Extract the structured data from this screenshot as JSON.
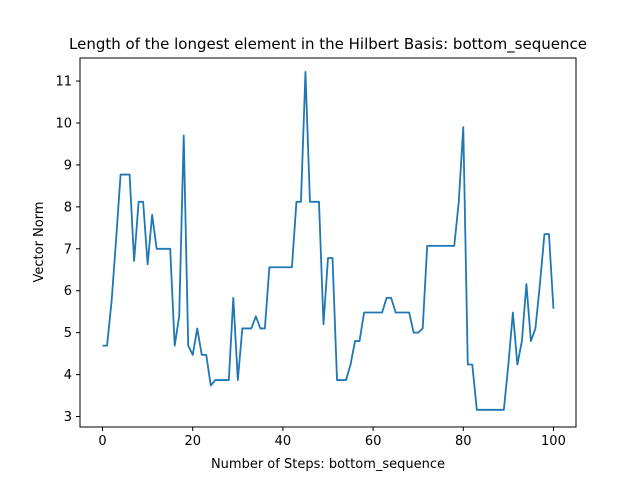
{
  "chart_data": {
    "type": "line",
    "title": "Length of the longest element in the Hilbert Basis: bottom_sequence",
    "xlabel": "Number of Steps: bottom_sequence",
    "ylabel": "Vector Norm",
    "xlim": [
      -5,
      105
    ],
    "ylim": [
      2.75,
      11.55
    ],
    "xticks": [
      0,
      20,
      40,
      60,
      80,
      100
    ],
    "yticks": [
      3,
      4,
      5,
      6,
      7,
      8,
      9,
      10,
      11
    ],
    "grid": false,
    "line_color": "#1f77b4",
    "series": [
      {
        "x": [
          0,
          1,
          2,
          3,
          4,
          5,
          6,
          7,
          8,
          9,
          10,
          11,
          12,
          13,
          14,
          15,
          16,
          17,
          18,
          19,
          20,
          21,
          22,
          23,
          24,
          25,
          26,
          27,
          28,
          29,
          30,
          31,
          32,
          33,
          34,
          35,
          36,
          37,
          38,
          39,
          40,
          41,
          42,
          43,
          44,
          45,
          46,
          47,
          48,
          49,
          50,
          51,
          52,
          53,
          54,
          55,
          56,
          57,
          58,
          59,
          60,
          61,
          62,
          63,
          64,
          65,
          66,
          67,
          68,
          69,
          70,
          71,
          72,
          73,
          74,
          75,
          76,
          77,
          78,
          79,
          80,
          81,
          82,
          83,
          84,
          85,
          86,
          87,
          88,
          89,
          90,
          91,
          92,
          93,
          94,
          95,
          96,
          97,
          98,
          99,
          100
        ],
        "values": [
          4.69,
          4.69,
          5.74,
          7.21,
          8.77,
          8.77,
          8.77,
          6.71,
          8.12,
          8.12,
          6.63,
          7.81,
          7.0,
          7.0,
          7.0,
          7.0,
          4.69,
          5.39,
          9.7,
          4.69,
          4.47,
          5.1,
          4.47,
          4.47,
          3.74,
          3.87,
          3.87,
          3.87,
          3.87,
          5.83,
          3.87,
          5.1,
          5.1,
          5.1,
          5.39,
          5.1,
          5.1,
          6.56,
          6.56,
          6.56,
          6.56,
          6.56,
          6.56,
          8.12,
          8.12,
          11.22,
          8.12,
          8.12,
          8.12,
          5.2,
          6.78,
          6.78,
          3.87,
          3.87,
          3.87,
          4.24,
          4.8,
          4.8,
          5.48,
          5.48,
          5.48,
          5.48,
          5.48,
          5.83,
          5.83,
          5.48,
          5.48,
          5.48,
          5.48,
          5.0,
          5.0,
          5.1,
          7.07,
          7.07,
          7.07,
          7.07,
          7.07,
          7.07,
          7.07,
          8.12,
          9.9,
          4.24,
          4.24,
          3.16,
          3.16,
          3.16,
          3.16,
          3.16,
          3.16,
          3.16,
          4.24,
          5.48,
          4.24,
          4.8,
          6.16,
          4.8,
          5.1,
          6.16,
          7.35,
          7.35,
          5.57
        ]
      }
    ]
  }
}
